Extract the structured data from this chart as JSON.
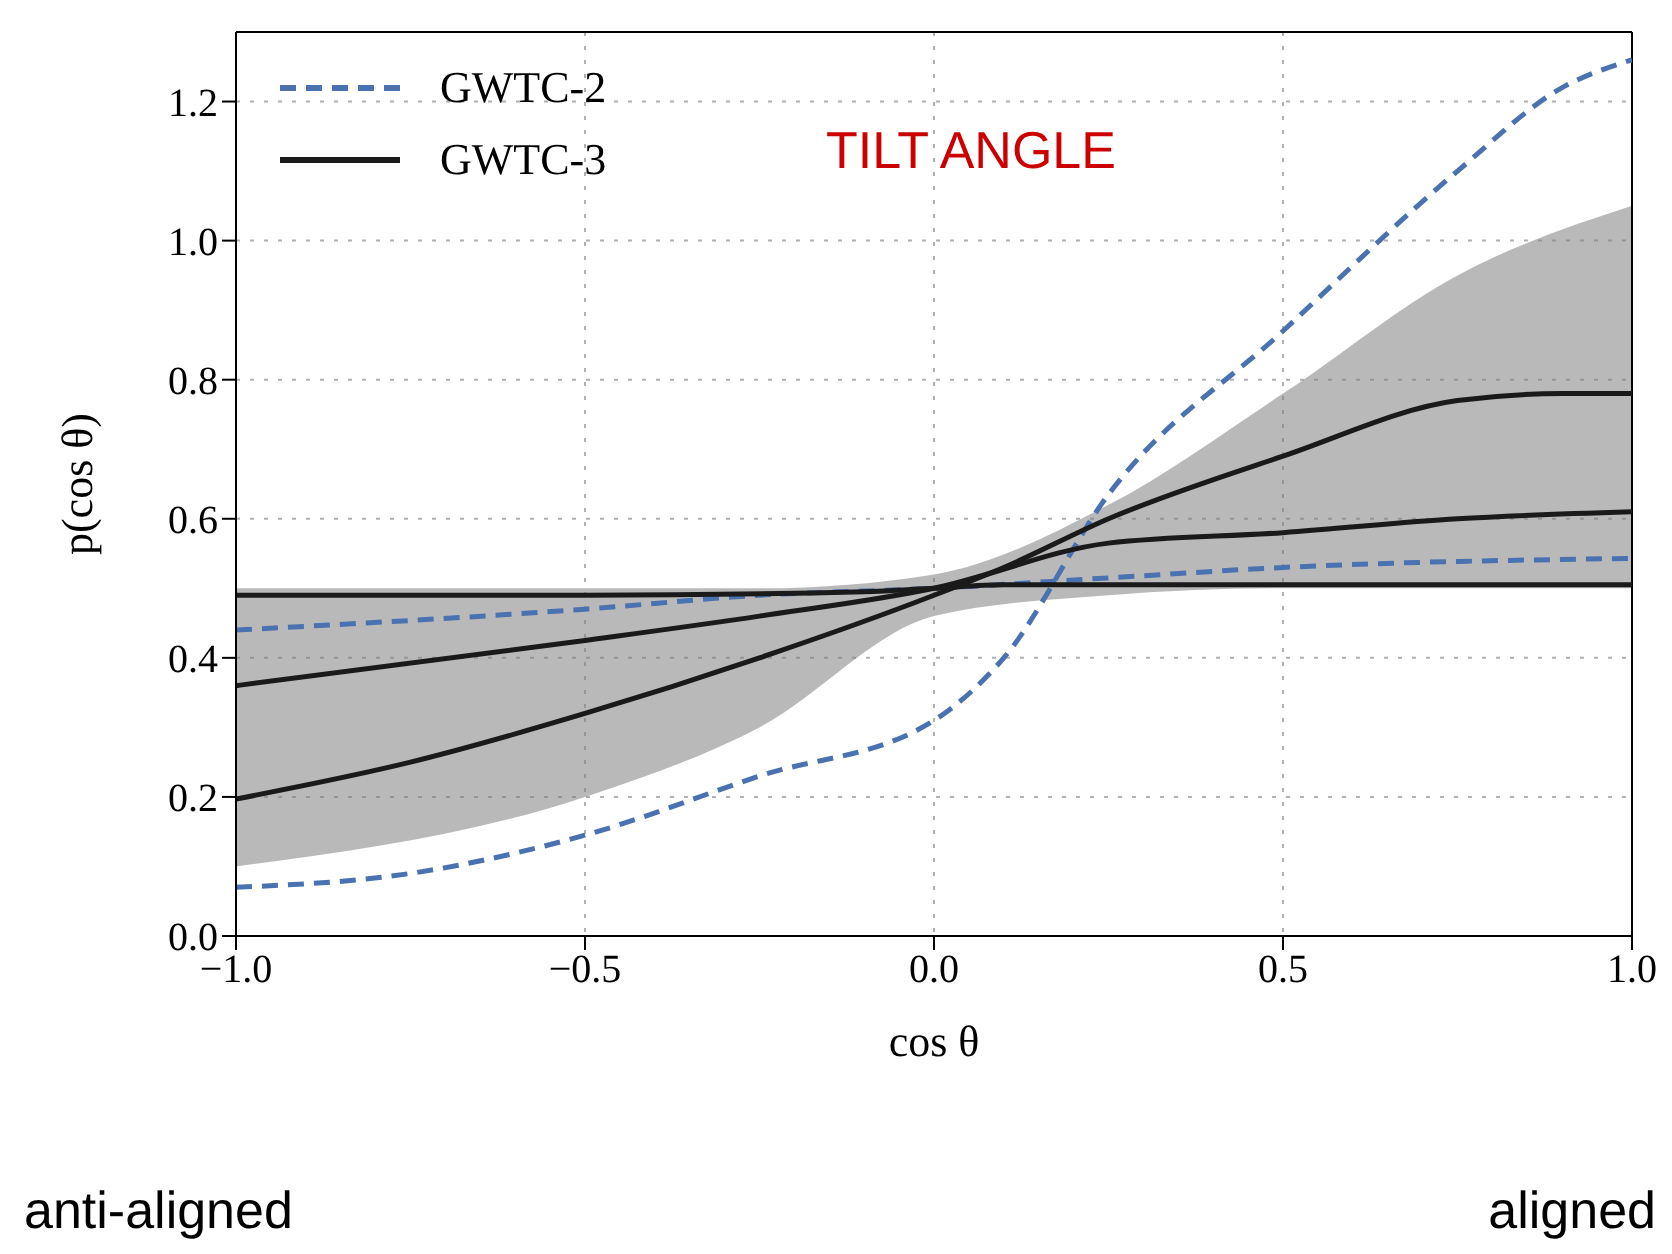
{
  "chart_data": {
    "type": "line",
    "xlabel": "cos θ",
    "ylabel": "p(cos θ)",
    "xlim": [
      -1,
      1
    ],
    "xticks": [
      {
        "value": -1,
        "label": "−1.0"
      },
      {
        "value": -0.5,
        "label": "−0.5"
      },
      {
        "value": 0,
        "label": "0.0"
      },
      0.5,
      {
        "value": 1,
        "label": "1.0"
      }
    ],
    "ylim": [
      0,
      1.3
    ],
    "yticks": [
      {
        "value": 0,
        "label": "0.0"
      },
      0.2,
      0.4,
      0.6,
      0.8,
      {
        "value": 1,
        "label": "1.0"
      },
      1.2
    ],
    "grid": true,
    "legend": "top left",
    "annotations": [
      "TILT ANGLE",
      "anti-aligned",
      "aligned"
    ],
    "series": [
      {
        "name": "GWTC-2",
        "color": "#4a72b0",
        "line_style": "dashed",
        "x": [
          -1,
          -0.75,
          -0.5,
          -0.25,
          0,
          0.1,
          0.25,
          0.5,
          0.75,
          0.9,
          1
        ],
        "values": [
          0.07,
          0.09,
          0.145,
          0.23,
          0.31,
          0.4,
          0.635,
          0.87,
          1.1,
          1.22,
          1.26
        ]
      },
      {
        "color": "#4a72b0",
        "line_style": "dashed",
        "x": [
          -1,
          -0.5,
          -0.25,
          0,
          0.25,
          0.5,
          1
        ],
        "values": [
          0.44,
          0.47,
          0.49,
          0.5,
          0.515,
          0.53,
          0.543
        ]
      },
      {
        "name": "GWTC-3",
        "color": "#1a1a1a",
        "line_style": "solid",
        "x": [
          -1,
          -0.75,
          -0.5,
          -0.25,
          0,
          0.1,
          0.25,
          0.5,
          0.75,
          0.9,
          1
        ],
        "values": [
          0.197,
          0.25,
          0.32,
          0.4,
          0.49,
          0.53,
          0.6,
          0.69,
          0.77,
          0.78,
          0.78
        ]
      },
      {
        "color": "#1a1a1a",
        "line_style": "solid",
        "x": [
          -1,
          -0.5,
          -0.25,
          0,
          0.25,
          0.5,
          0.75,
          1
        ],
        "values": [
          0.36,
          0.425,
          0.46,
          0.5,
          0.565,
          0.58,
          0.6,
          0.61
        ],
        "lower": [
          0.1,
          0.2,
          0.3,
          0.46,
          0.49,
          0.5,
          0.5,
          0.5
        ],
        "upper": [
          0.5,
          0.5,
          0.5,
          0.52,
          0.62,
          0.78,
          0.95,
          1.05
        ]
      },
      {
        "color": "#1a1a1a",
        "line_style": "solid",
        "x": [
          -1,
          -0.5,
          -0.1,
          0,
          0.1,
          1
        ],
        "values": [
          0.49,
          0.49,
          0.495,
          0.5,
          0.505,
          0.505
        ]
      }
    ]
  }
}
